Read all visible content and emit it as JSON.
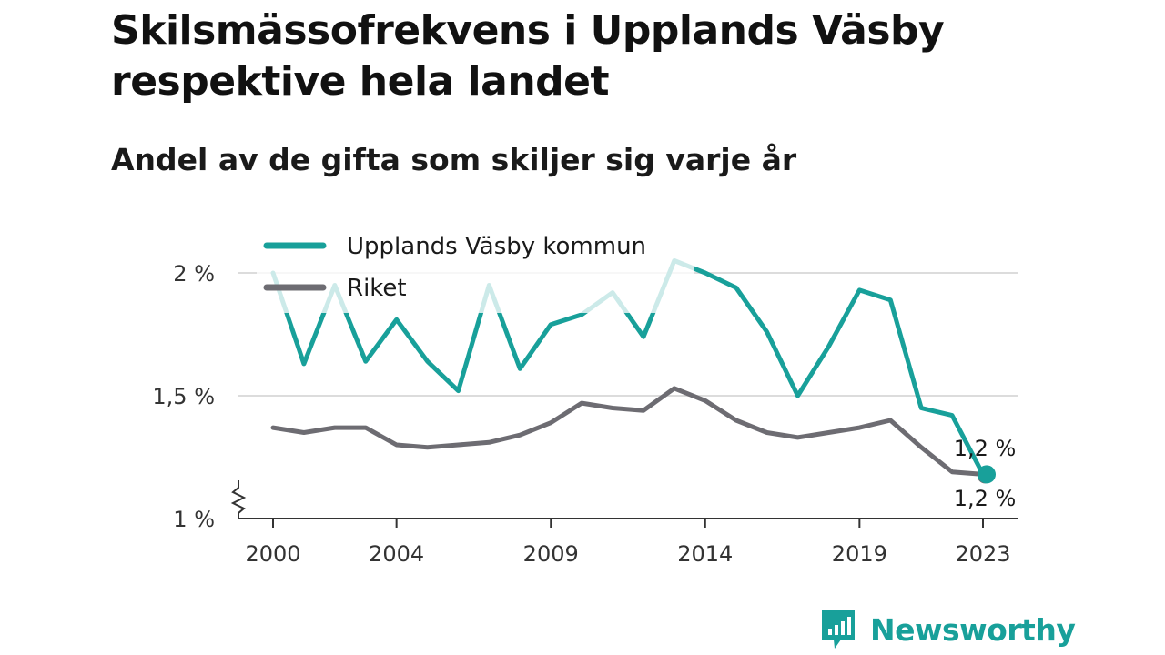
{
  "header": {
    "title": "Skilsmässofrekvens i Upplands Väsby respektive hela landet",
    "subtitle": "Andel av de gifta som skiljer sig varje år"
  },
  "brand": {
    "name": "Newsworthy",
    "color": "#18a09a",
    "icon": "chart-bubble-icon"
  },
  "chart_data": {
    "type": "line",
    "title": "Skilsmässofrekvens i Upplands Väsby respektive hela landet",
    "subtitle": "Andel av de gifta som skiljer sig varje år",
    "xlabel": "",
    "ylabel": "",
    "x": [
      2000,
      2001,
      2002,
      2003,
      2004,
      2005,
      2006,
      2007,
      2008,
      2009,
      2010,
      2011,
      2012,
      2013,
      2014,
      2015,
      2016,
      2017,
      2018,
      2019,
      2020,
      2021,
      2022,
      2023
    ],
    "x_ticks": [
      2000,
      2004,
      2009,
      2014,
      2019,
      2023
    ],
    "x_tick_labels": [
      "2000",
      "2004",
      "2009",
      "2014",
      "2019",
      "2023"
    ],
    "ylim": [
      1.0,
      2.0
    ],
    "y_ticks": [
      1.0,
      1.5,
      2.0
    ],
    "y_tick_labels": [
      "1 %",
      "1,5 %",
      "2 %"
    ],
    "y_axis_break": true,
    "grid": true,
    "legend_position": "top-left",
    "series": [
      {
        "name": "Upplands Väsby kommun",
        "color": "#18a09a",
        "values": [
          2.0,
          1.63,
          1.95,
          1.64,
          1.81,
          1.64,
          1.52,
          1.95,
          1.61,
          1.79,
          1.83,
          1.92,
          1.74,
          2.05,
          2.0,
          1.94,
          1.76,
          1.5,
          1.7,
          1.93,
          1.89,
          1.45,
          1.42,
          1.18
        ],
        "end_label": "1,2 %"
      },
      {
        "name": "Riket",
        "color": "#6d6c72",
        "values": [
          1.37,
          1.35,
          1.37,
          1.37,
          1.3,
          1.29,
          1.3,
          1.31,
          1.34,
          1.39,
          1.47,
          1.45,
          1.44,
          1.53,
          1.48,
          1.4,
          1.35,
          1.33,
          1.35,
          1.37,
          1.4,
          1.29,
          1.19,
          1.18
        ],
        "end_label": "1,2 %"
      }
    ]
  }
}
